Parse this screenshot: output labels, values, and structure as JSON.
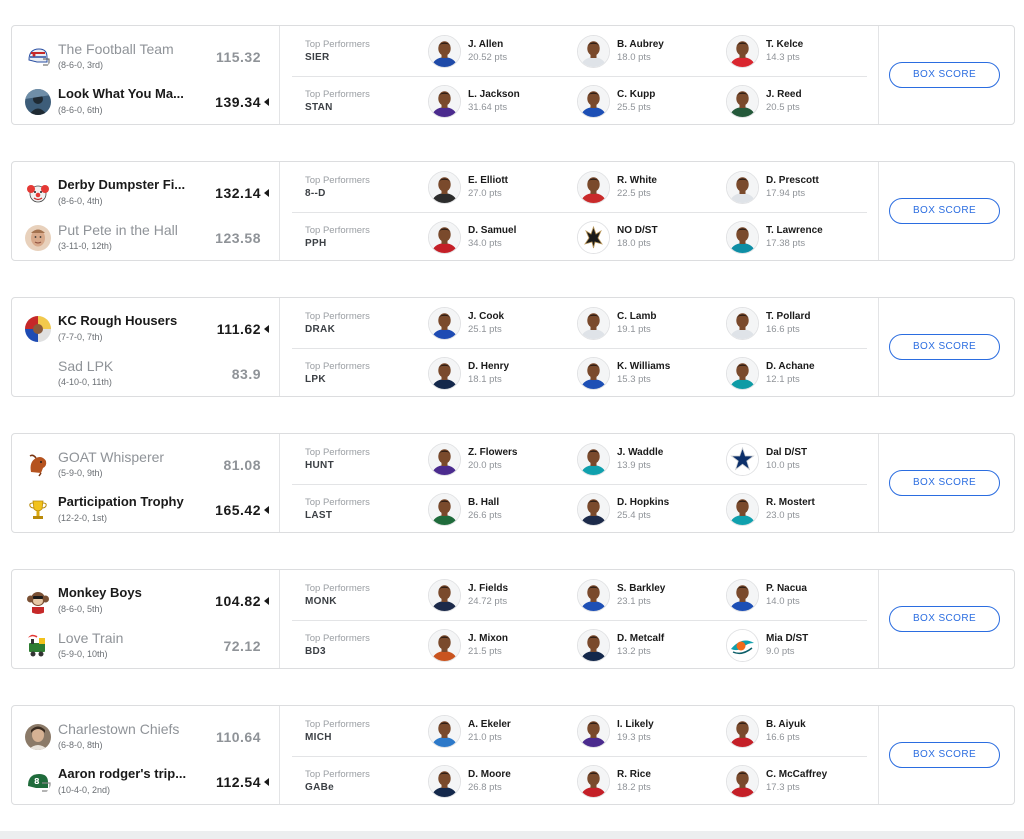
{
  "box_score_label": "BOX SCORE",
  "top_performers_label": "Top Performers",
  "matchups": [
    {
      "teams": [
        {
          "name": "The Football Team",
          "record": "(8-6-0, 3rd)",
          "score": "115.32",
          "winner": false,
          "logo": "helmet"
        },
        {
          "name": "Look What You Ma...",
          "record": "(8-6-0, 6th)",
          "score": "139.34",
          "winner": true,
          "logo": "avatar"
        }
      ],
      "performers": [
        {
          "abbr": "SIER",
          "players": [
            {
              "name": "J. Allen",
              "pts": "20.52 pts",
              "jersey": "#1f4aa8"
            },
            {
              "name": "B. Aubrey",
              "pts": "18.0 pts",
              "jersey": "#dfe3e8"
            },
            {
              "name": "T. Kelce",
              "pts": "14.3 pts",
              "jersey": "#d9262f"
            }
          ]
        },
        {
          "abbr": "STAN",
          "players": [
            {
              "name": "L. Jackson",
              "pts": "31.64 pts",
              "jersey": "#4b2b8e"
            },
            {
              "name": "C. Kupp",
              "pts": "25.5 pts",
              "jersey": "#1d4fb5"
            },
            {
              "name": "J. Reed",
              "pts": "20.5 pts",
              "jersey": "#24593a"
            }
          ]
        }
      ]
    },
    {
      "teams": [
        {
          "name": "Derby Dumpster Fi...",
          "record": "(8-6-0, 4th)",
          "score": "132.14",
          "winner": true,
          "logo": "clown"
        },
        {
          "name": "Put Pete in the Hall",
          "record": "(3-11-0, 12th)",
          "score": "123.58",
          "winner": false,
          "logo": "face"
        }
      ],
      "performers": [
        {
          "abbr": "8--D",
          "players": [
            {
              "name": "E. Elliott",
              "pts": "27.0 pts",
              "jersey": "#2c2c2c"
            },
            {
              "name": "R. White",
              "pts": "22.5 pts",
              "jersey": "#c92a2a"
            },
            {
              "name": "D. Prescott",
              "pts": "17.94 pts",
              "jersey": "#dfe3e8"
            }
          ]
        },
        {
          "abbr": "PPH",
          "players": [
            {
              "name": "D. Samuel",
              "pts": "34.0 pts",
              "jersey": "#c41f27"
            },
            {
              "name": "NO D/ST",
              "pts": "18.0 pts",
              "jersey": "#111111"
            },
            {
              "name": "T. Lawrence",
              "pts": "17.38 pts",
              "jersey": "#0e8ea5"
            }
          ]
        }
      ]
    },
    {
      "teams": [
        {
          "name": "KC Rough Housers",
          "record": "(7-7-0, 7th)",
          "score": "111.62",
          "winner": true,
          "logo": "collage"
        },
        {
          "name": "Sad LPK",
          "record": "(4-10-0, 11th)",
          "score": "83.9",
          "winner": false,
          "logo": "none"
        }
      ],
      "performers": [
        {
          "abbr": "DRAK",
          "players": [
            {
              "name": "J. Cook",
              "pts": "25.1 pts",
              "jersey": "#1e4bb3"
            },
            {
              "name": "C. Lamb",
              "pts": "19.1 pts",
              "jersey": "#dfe3e8"
            },
            {
              "name": "T. Pollard",
              "pts": "16.6 pts",
              "jersey": "#dfe3e8"
            }
          ]
        },
        {
          "abbr": "LPK",
          "players": [
            {
              "name": "D. Henry",
              "pts": "18.1 pts",
              "jersey": "#14284b"
            },
            {
              "name": "K. Williams",
              "pts": "15.3 pts",
              "jersey": "#1d4fb5"
            },
            {
              "name": "D. Achane",
              "pts": "12.1 pts",
              "jersey": "#0e9ba5"
            }
          ]
        }
      ]
    },
    {
      "teams": [
        {
          "name": "GOAT Whisperer",
          "record": "(5-9-0, 9th)",
          "score": "81.08",
          "winner": false,
          "logo": "goat"
        },
        {
          "name": "Participation Trophy",
          "record": "(12-2-0, 1st)",
          "score": "165.42",
          "winner": true,
          "logo": "trophy"
        }
      ],
      "performers": [
        {
          "abbr": "HUNT",
          "players": [
            {
              "name": "Z. Flowers",
              "pts": "20.0 pts",
              "jersey": "#4b2b8e"
            },
            {
              "name": "J. Waddle",
              "pts": "13.9 pts",
              "jersey": "#10a0ad"
            },
            {
              "name": "Dal D/ST",
              "pts": "10.0 pts",
              "jersey": "#0b2f6a"
            }
          ]
        },
        {
          "abbr": "LAST",
          "players": [
            {
              "name": "B. Hall",
              "pts": "26.6 pts",
              "jersey": "#1f6b3b"
            },
            {
              "name": "D. Hopkins",
              "pts": "25.4 pts",
              "jersey": "#1c2a4a"
            },
            {
              "name": "R. Mostert",
              "pts": "23.0 pts",
              "jersey": "#10a0ad"
            }
          ]
        }
      ]
    },
    {
      "teams": [
        {
          "name": "Monkey Boys",
          "record": "(8-6-0, 5th)",
          "score": "104.82",
          "winner": true,
          "logo": "monkey"
        },
        {
          "name": "Love Train",
          "record": "(5-9-0, 10th)",
          "score": "72.12",
          "winner": false,
          "logo": "train"
        }
      ],
      "performers": [
        {
          "abbr": "MONK",
          "players": [
            {
              "name": "J. Fields",
              "pts": "24.72 pts",
              "jersey": "#1c2a4a"
            },
            {
              "name": "S. Barkley",
              "pts": "23.1 pts",
              "jersey": "#1d4fb5"
            },
            {
              "name": "P. Nacua",
              "pts": "14.0 pts",
              "jersey": "#1d4fb5"
            }
          ]
        },
        {
          "abbr": "BD3",
          "players": [
            {
              "name": "J. Mixon",
              "pts": "21.5 pts",
              "jersey": "#c9541f"
            },
            {
              "name": "D. Metcalf",
              "pts": "13.2 pts",
              "jersey": "#14284b"
            },
            {
              "name": "Mia D/ST",
              "pts": "9.0 pts",
              "jersey": "#10a0ad"
            }
          ]
        }
      ]
    },
    {
      "teams": [
        {
          "name": "Charlestown Chiefs",
          "record": "(6-8-0, 8th)",
          "score": "110.64",
          "winner": false,
          "logo": "portrait"
        },
        {
          "name": "Aaron rodger's trip...",
          "record": "(10-4-0, 2nd)",
          "score": "112.54",
          "winner": true,
          "logo": "jets"
        }
      ],
      "performers": [
        {
          "abbr": "MICH",
          "players": [
            {
              "name": "A. Ekeler",
              "pts": "21.0 pts",
              "jersey": "#2d79c9"
            },
            {
              "name": "I. Likely",
              "pts": "19.3 pts",
              "jersey": "#4b2b8e"
            },
            {
              "name": "B. Aiyuk",
              "pts": "16.6 pts",
              "jersey": "#c41f27"
            }
          ]
        },
        {
          "abbr": "GABe",
          "players": [
            {
              "name": "D. Moore",
              "pts": "26.8 pts",
              "jersey": "#14284b"
            },
            {
              "name": "R. Rice",
              "pts": "18.2 pts",
              "jersey": "#c41f27"
            },
            {
              "name": "C. McCaffrey",
              "pts": "17.3 pts",
              "jersey": "#c41f27"
            }
          ]
        }
      ]
    }
  ]
}
